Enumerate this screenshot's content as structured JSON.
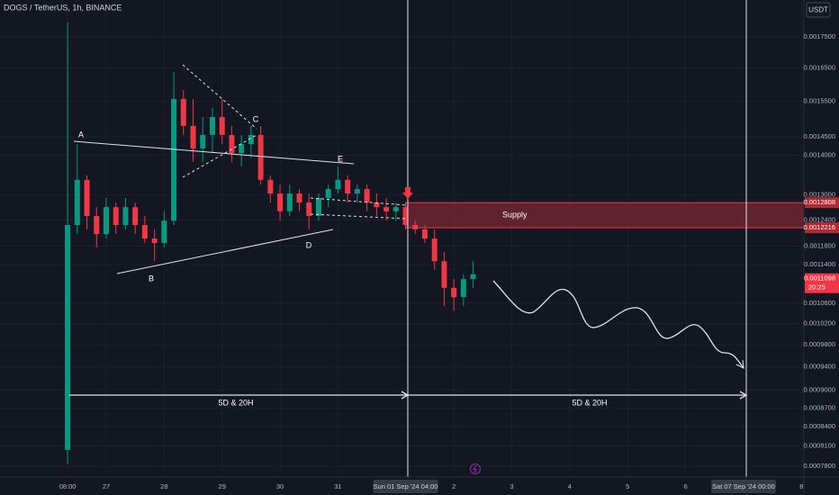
{
  "chart_data": {
    "type": "candlestick",
    "title": "DOGS / TetherUS, 1h, BINANCE",
    "currency": "USDT",
    "log_scale": true,
    "grid": true,
    "up_color": "#089981",
    "down_color": "#f23645",
    "xlim": [
      -28,
      305
    ],
    "ylim": [
      0.000764,
      0.001876
    ],
    "xticks": [
      {
        "value": 0,
        "label": "08:00"
      },
      {
        "value": 16,
        "label": "27"
      },
      {
        "value": 40,
        "label": "28"
      },
      {
        "value": 64,
        "label": "29"
      },
      {
        "value": 88,
        "label": "30"
      },
      {
        "value": 112,
        "label": "31"
      },
      {
        "value": 140,
        "label": "Sun 01 Sep '24  04:00",
        "highlight": true
      },
      {
        "value": 160,
        "label": "2"
      },
      {
        "value": 184,
        "label": "3"
      },
      {
        "value": 208,
        "label": "4"
      },
      {
        "value": 232,
        "label": "5"
      },
      {
        "value": 256,
        "label": "6"
      },
      {
        "value": 280,
        "label": "Sat 07 Sep '24  00:00",
        "highlight": true
      },
      {
        "value": 304,
        "label": "8"
      }
    ],
    "yticks": [
      {
        "value": 0.00175,
        "label": "0.0017500"
      },
      {
        "value": 0.00165,
        "label": "0.0016500"
      },
      {
        "value": 0.00155,
        "label": "0.0015500"
      },
      {
        "value": 0.00145,
        "label": "0.0014500"
      },
      {
        "value": 0.0014,
        "label": "0.0014000"
      },
      {
        "value": 0.0013,
        "label": "0.0013000"
      },
      {
        "value": 0.00124,
        "label": "0.0012400"
      },
      {
        "value": 0.00118,
        "label": "0.0011800"
      },
      {
        "value": 0.00114,
        "label": "0.0011400"
      },
      {
        "value": 0.00106,
        "label": "0.0010600"
      },
      {
        "value": 0.00102,
        "label": "0.0010200"
      },
      {
        "value": 0.00098,
        "label": "0.0009800"
      },
      {
        "value": 0.00094,
        "label": "0.0009400"
      },
      {
        "value": 0.0009,
        "label": "0.0009000"
      },
      {
        "value": 0.00087,
        "label": "0.0008700"
      },
      {
        "value": 0.00084,
        "label": "0.0008400"
      },
      {
        "value": 0.00081,
        "label": "0.0008100"
      },
      {
        "value": 0.00078,
        "label": "0.0007800"
      }
    ],
    "x": [
      0,
      4,
      8,
      12,
      16,
      20,
      24,
      28,
      32,
      36,
      40,
      44,
      48,
      52,
      56,
      60,
      64,
      68,
      72,
      76,
      80,
      84,
      88,
      92,
      96,
      100,
      104,
      108,
      112,
      116,
      120,
      124,
      128,
      132,
      136,
      140,
      144,
      148,
      152,
      156,
      160,
      164,
      168
    ],
    "open": [
      0.000804,
      0.001228,
      0.001337,
      0.001249,
      0.001207,
      0.00127,
      0.001228,
      0.00127,
      0.001228,
      0.001197,
      0.001187,
      0.001238,
      0.001557,
      0.00148,
      0.001418,
      0.001455,
      0.001505,
      0.001455,
      0.001406,
      0.00143,
      0.001455,
      0.001337,
      0.001303,
      0.00126,
      0.001303,
      0.001281,
      0.001249,
      0.001292,
      0.001314,
      0.001337,
      0.001303,
      0.001314,
      0.001281,
      0.00127,
      0.00126,
      0.00127,
      0.001228,
      0.001218,
      0.001197,
      0.001147,
      0.001091,
      0.001072,
      0.001109
    ],
    "high": [
      0.001798,
      0.00143,
      0.001348,
      0.00127,
      0.001292,
      0.001281,
      0.001292,
      0.001281,
      0.001249,
      0.001218,
      0.00126,
      0.001638,
      0.001583,
      0.001557,
      0.001505,
      0.001531,
      0.001557,
      0.00148,
      0.001455,
      0.00148,
      0.00148,
      0.001348,
      0.001325,
      0.001325,
      0.001314,
      0.001303,
      0.001303,
      0.001325,
      0.001371,
      0.001348,
      0.001325,
      0.001325,
      0.001303,
      0.001292,
      0.001281,
      0.001281,
      0.001238,
      0.001228,
      0.001218,
      0.001167,
      0.001109,
      0.001119,
      0.001147
    ],
    "low": [
      0.000783,
      0.001207,
      0.001218,
      0.001177,
      0.001197,
      0.001207,
      0.001218,
      0.001207,
      0.001187,
      0.001147,
      0.001177,
      0.001228,
      0.001455,
      0.001383,
      0.001383,
      0.001406,
      0.00143,
      0.001383,
      0.001371,
      0.001394,
      0.001325,
      0.001281,
      0.001238,
      0.001249,
      0.00126,
      0.001218,
      0.001238,
      0.00127,
      0.001303,
      0.001281,
      0.001281,
      0.00126,
      0.001249,
      0.001238,
      0.001238,
      0.001218,
      0.001207,
      0.001187,
      0.001128,
      0.001054,
      0.001045,
      0.001054,
      0.001091
    ],
    "close": [
      0.001228,
      0.001337,
      0.001249,
      0.001207,
      0.00127,
      0.001228,
      0.00127,
      0.001228,
      0.001197,
      0.001187,
      0.001238,
      0.001557,
      0.00148,
      0.001418,
      0.001455,
      0.001505,
      0.001455,
      0.001406,
      0.00143,
      0.001455,
      0.001337,
      0.001303,
      0.00126,
      0.001303,
      0.001281,
      0.001249,
      0.001292,
      0.001314,
      0.001337,
      0.001303,
      0.001314,
      0.001281,
      0.00127,
      0.00126,
      0.00127,
      0.001228,
      0.001218,
      0.001197,
      0.001147,
      0.001091,
      0.001072,
      0.001109,
      0.001119
    ],
    "zone": {
      "label": "Supply",
      "top": 0.0012808,
      "bottom": 0.0012216,
      "start": 140,
      "color": "#f23645"
    },
    "last_price": {
      "value": 0.0011098,
      "countdown": "20:25"
    },
    "pattern_labels": [
      "A",
      "B",
      "C",
      "D",
      "E"
    ],
    "measure_labels": [
      "5D & 20H",
      "5D & 20H"
    ]
  }
}
